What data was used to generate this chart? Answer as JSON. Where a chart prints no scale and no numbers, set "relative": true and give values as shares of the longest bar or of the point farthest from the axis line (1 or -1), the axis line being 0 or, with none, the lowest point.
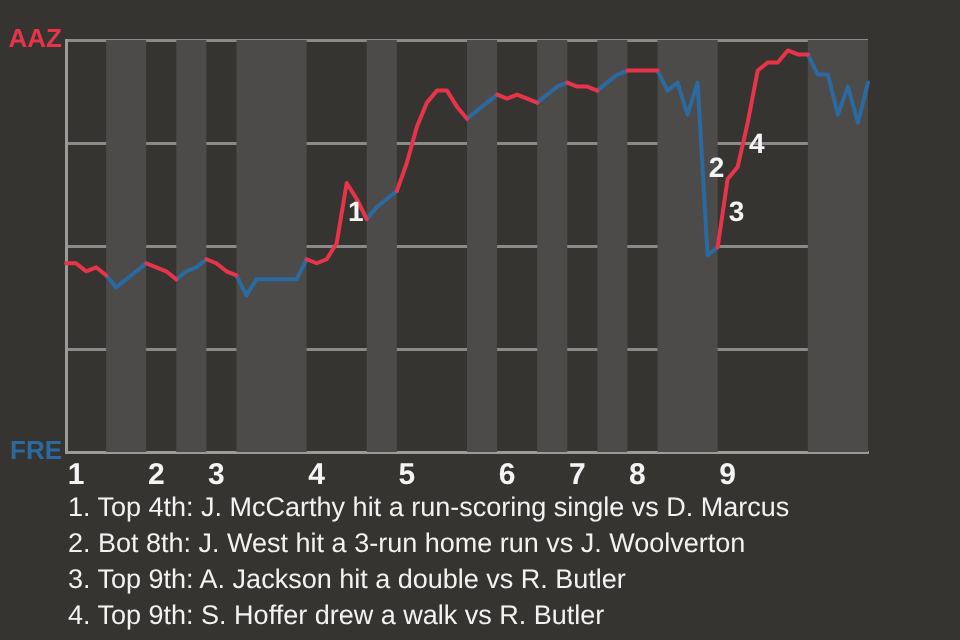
{
  "chart_data": {
    "type": "line",
    "relative": true,
    "grid": "y",
    "marker": "none",
    "line_style": "solid",
    "legend": "left",
    "categories": [
      null,
      "1",
      null,
      null,
      null,
      null,
      null,
      null,
      null,
      "2",
      null,
      null,
      null,
      null,
      null,
      "3",
      null,
      null,
      null,
      null,
      null,
      null,
      null,
      null,
      null,
      "4",
      null,
      null,
      null,
      null,
      null,
      null,
      null,
      null,
      "5",
      null,
      null,
      null,
      null,
      null,
      null,
      null,
      null,
      null,
      "6",
      null,
      null,
      null,
      null,
      null,
      null,
      "7",
      null,
      null,
      null,
      null,
      null,
      "8",
      null,
      null,
      null,
      null,
      null,
      null,
      null,
      null,
      "9",
      null,
      null,
      null,
      null,
      null,
      null,
      null,
      null,
      null,
      null,
      null,
      null,
      null,
      null
    ],
    "series": [
      {
        "name": "AAZ",
        "color": "#e8344a",
        "values": [
          0.47,
          0.47,
          0.45,
          0.46,
          0.44,
          null,
          null,
          null,
          0.47,
          0.46,
          0.45,
          0.43,
          null,
          null,
          0.48,
          0.47,
          0.45,
          0.44,
          null,
          null,
          null,
          null,
          null,
          null,
          0.48,
          0.47,
          0.48,
          0.52,
          0.67,
          0.63,
          0.58,
          null,
          null,
          0.65,
          0.72,
          0.81,
          0.87,
          0.9,
          0.9,
          0.86,
          0.83,
          null,
          null,
          0.89,
          0.88,
          0.89,
          0.88,
          0.87,
          null,
          null,
          0.92,
          0.91,
          0.91,
          0.9,
          null,
          null,
          0.95,
          0.95,
          0.95,
          0.95,
          null,
          null,
          null,
          null,
          null,
          0.51,
          0.68,
          0.71,
          0.82,
          0.95,
          0.97,
          0.97,
          1,
          0.99,
          0.99,
          null,
          null,
          null,
          null,
          null,
          null
        ]
      },
      {
        "name": "FRE",
        "color": "#2a6aa0",
        "values": [
          null,
          null,
          null,
          null,
          0.44,
          0.41,
          0.43,
          0.45,
          0.47,
          null,
          null,
          0.43,
          0.45,
          0.46,
          0.48,
          null,
          null,
          0.44,
          0.39,
          0.43,
          0.43,
          0.43,
          0.43,
          0.43,
          0.48,
          null,
          null,
          null,
          null,
          null,
          0.58,
          0.61,
          0.63,
          0.65,
          null,
          null,
          null,
          null,
          null,
          null,
          0.83,
          0.85,
          0.87,
          0.89,
          null,
          null,
          null,
          0.87,
          0.89,
          0.91,
          0.92,
          null,
          null,
          0.9,
          0.92,
          0.94,
          0.95,
          null,
          null,
          0.95,
          0.9,
          0.92,
          0.84,
          0.92,
          0.49,
          0.51,
          null,
          null,
          null,
          null,
          null,
          null,
          null,
          null,
          0.99,
          0.94,
          0.94,
          0.84,
          0.91,
          0.82,
          0.92
        ]
      }
    ],
    "annotations": [
      "1",
      "2",
      "3",
      "4",
      "1. Top 4th: J. McCarthy hit a run-scoring single vs D. Marcus",
      "2. Bot 8th: J. West hit a 3-run home run vs J. Woolverton",
      "3. Top 9th: A. Jackson hit a double vs R. Butler",
      "4. Top 9th: S. Hoffer drew a walk vs R. Butler"
    ]
  }
}
